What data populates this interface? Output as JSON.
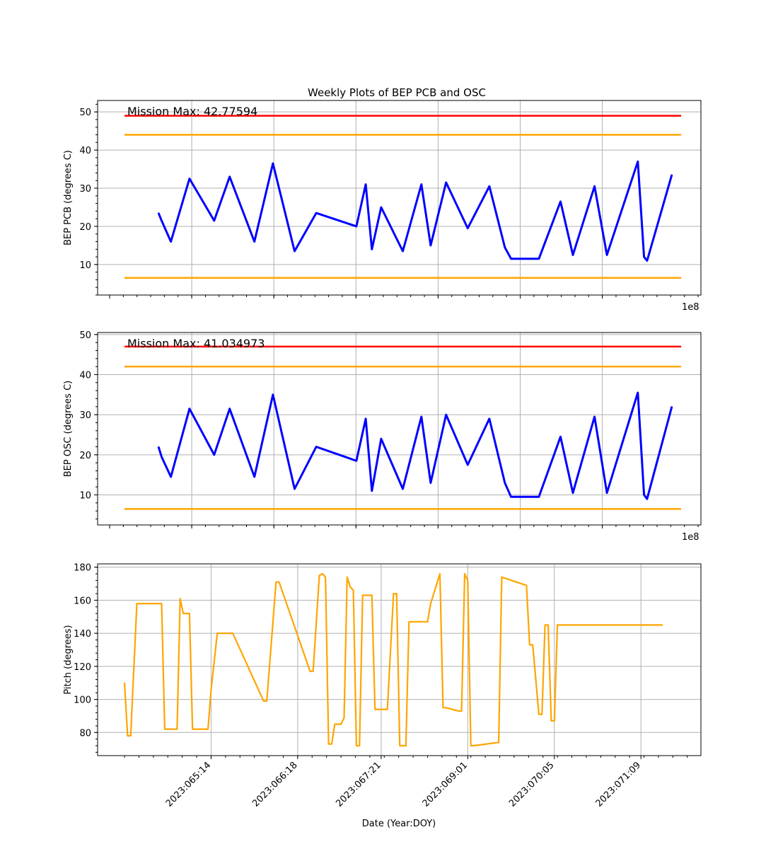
{
  "title": "Weekly Plots of BEP PCB and OSC",
  "chart_data": [
    {
      "type": "line",
      "ylabel": "BEP PCB (degrees C)",
      "annotation": "Mission Max: 42.77594",
      "offset_text": "1e8",
      "ylim": [
        2,
        53
      ],
      "yticks": [
        10,
        20,
        30,
        40,
        50
      ],
      "grid": true,
      "limits": {
        "red": 49,
        "orange_high": 44,
        "orange_low": 6.5
      },
      "limit_color_red": "#ff0000",
      "limit_color_orange": "#ffa500",
      "series_color": "#0000ff",
      "series": [
        {
          "x": [
            "2023:064:21",
            "2023:064:22",
            "2023:065:01",
            "2023:065:07",
            "2023:065:15",
            "2023:065:20",
            "2023:066:04",
            "2023:066:10",
            "2023:066:17",
            "2023:067:00",
            "2023:067:13",
            "2023:067:16",
            "2023:067:18",
            "2023:067:21",
            "2023:068:04",
            "2023:068:10",
            "2023:068:13",
            "2023:068:18",
            "2023:069:01",
            "2023:069:08",
            "2023:069:13",
            "2023:069:15",
            "2023:070:00",
            "2023:070:07",
            "2023:070:11",
            "2023:070:18",
            "2023:070:22",
            "2023:071:08",
            "2023:071:10",
            "2023:071:11",
            "2023:071:19"
          ],
          "y": [
            23.5,
            21.5,
            16.0,
            32.5,
            21.5,
            33.0,
            16.0,
            36.5,
            13.5,
            23.5,
            20.0,
            31.0,
            14.0,
            25.0,
            13.5,
            31.0,
            15.0,
            31.5,
            19.5,
            30.5,
            14.5,
            11.5,
            11.5,
            26.5,
            12.5,
            30.5,
            12.5,
            37.0,
            12.0,
            11.0,
            33.5
          ]
        }
      ]
    },
    {
      "type": "line",
      "ylabel": "BEP OSC (degrees C)",
      "annotation": "Mission Max: 41.034973",
      "offset_text": "1e8",
      "ylim": [
        2.5,
        50.5
      ],
      "yticks": [
        10,
        20,
        30,
        40,
        50
      ],
      "grid": true,
      "limits": {
        "red": 47,
        "orange_high": 42,
        "orange_low": 6.5
      },
      "series": [
        {
          "x": [
            "2023:064:21",
            "2023:064:22",
            "2023:065:01",
            "2023:065:07",
            "2023:065:15",
            "2023:065:20",
            "2023:066:04",
            "2023:066:10",
            "2023:066:17",
            "2023:067:00",
            "2023:067:13",
            "2023:067:16",
            "2023:067:18",
            "2023:067:21",
            "2023:068:04",
            "2023:068:10",
            "2023:068:13",
            "2023:068:18",
            "2023:069:01",
            "2023:069:08",
            "2023:069:13",
            "2023:069:15",
            "2023:070:00",
            "2023:070:07",
            "2023:070:11",
            "2023:070:18",
            "2023:070:22",
            "2023:071:08",
            "2023:071:10",
            "2023:071:11",
            "2023:071:19"
          ],
          "y": [
            22.0,
            19.5,
            14.5,
            31.5,
            20.0,
            31.5,
            14.5,
            35.0,
            11.5,
            22.0,
            18.5,
            29.0,
            11.0,
            24.0,
            11.5,
            29.5,
            13.0,
            30.0,
            17.5,
            29.0,
            13.0,
            9.5,
            9.5,
            24.5,
            10.5,
            29.5,
            10.5,
            35.5,
            10.0,
            9.0,
            32.0
          ]
        }
      ]
    },
    {
      "type": "line",
      "ylabel": "Pitch (degrees)",
      "xlabel": "Date (Year:DOY)",
      "ylim": [
        66,
        182
      ],
      "yticks": [
        80,
        100,
        120,
        140,
        160,
        180
      ],
      "xticklabels": [
        "2023:065:14",
        "2023:066:18",
        "2023:067:21",
        "2023:069:01",
        "2023:070:05",
        "2023:071:09"
      ],
      "grid": true,
      "series_color": "#ffa500",
      "series": [
        {
          "x": [
            "2023:064:10",
            "2023:064:11",
            "2023:064:12",
            "2023:064:14",
            "2023:064:15",
            "2023:064:22",
            "2023:064:23",
            "2023:065:03",
            "2023:065:04",
            "2023:065:05",
            "2023:065:07",
            "2023:065:08",
            "2023:065:13",
            "2023:065:14",
            "2023:065:16",
            "2023:065:21",
            "2023:066:07",
            "2023:066:08",
            "2023:066:11",
            "2023:066:12",
            "2023:066:22",
            "2023:066:23",
            "2023:067:01",
            "2023:067:02",
            "2023:067:03",
            "2023:067:04",
            "2023:067:05",
            "2023:067:06",
            "2023:067:08",
            "2023:067:09",
            "2023:067:10",
            "2023:067:11",
            "2023:067:12",
            "2023:067:13",
            "2023:067:14",
            "2023:067:15",
            "2023:067:18",
            "2023:067:19",
            "2023:067:23",
            "2023:068:01",
            "2023:068:02",
            "2023:068:03",
            "2023:068:05",
            "2023:068:06",
            "2023:068:12",
            "2023:068:13",
            "2023:068:16",
            "2023:068:17",
            "2023:068:18",
            "2023:068:22",
            "2023:068:23",
            "2023:069:00",
            "2023:069:01",
            "2023:069:02",
            "2023:069:03",
            "2023:069:11",
            "2023:069:12",
            "2023:069:20",
            "2023:069:21",
            "2023:069:22",
            "2023:070:00",
            "2023:070:01",
            "2023:070:02",
            "2023:070:03",
            "2023:070:04",
            "2023:070:05",
            "2023:070:06",
            "2023:070:14",
            "2023:070:15",
            "2023:070:23",
            "2023:071:00",
            "2023:071:09",
            "2023:071:10",
            "2023:071:12",
            "2023:071:16"
          ],
          "y": [
            110,
            78,
            78,
            158,
            158,
            158,
            82,
            82,
            161,
            152,
            152,
            82,
            82,
            106,
            140,
            140,
            99,
            99,
            171,
            171,
            117,
            117,
            175,
            176,
            174,
            73,
            73,
            85,
            85,
            89,
            174,
            168,
            166,
            72,
            72,
            163,
            163,
            94,
            94,
            164,
            164,
            72,
            72,
            147,
            147,
            158,
            176,
            95,
            95,
            93,
            93,
            176,
            172,
            72,
            72,
            74,
            174,
            169,
            133,
            133,
            91,
            91,
            145,
            145,
            87,
            87,
            145,
            145,
            145,
            145,
            145,
            145,
            145,
            145,
            145
          ]
        }
      ]
    }
  ]
}
